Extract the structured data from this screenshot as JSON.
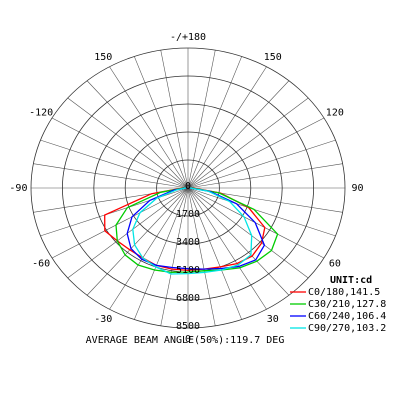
{
  "chart_data": {
    "type": "polar",
    "title": "AVERAGE BEAM ANGLE(50%):119.7 DEG",
    "unit_label": "UNIT:cd",
    "angles": [
      -90,
      -80,
      -70,
      -60,
      -50,
      -40,
      -30,
      -20,
      -10,
      0,
      10,
      20,
      30,
      40,
      50,
      60,
      70,
      80,
      90
    ],
    "series": [
      {
        "name": "C0/180,141.5",
        "color": "#ff0000",
        "values": [
          300,
          2000,
          4800,
          5200,
          5000,
          4900,
          4900,
          5000,
          5000,
          5000,
          5000,
          5100,
          5300,
          5400,
          5200,
          4800,
          3500,
          1800,
          300
        ]
      },
      {
        "name": "C30/210,127.8",
        "color": "#00cc00",
        "values": [
          200,
          1500,
          3500,
          4500,
          5000,
          5300,
          5400,
          5300,
          5200,
          5100,
          5100,
          5300,
          5600,
          5800,
          5900,
          5600,
          3800,
          1700,
          200
        ]
      },
      {
        "name": "C60/240,106.4",
        "color": "#0000ff",
        "values": [
          100,
          800,
          2200,
          3500,
          4300,
          4800,
          5000,
          5000,
          4900,
          4900,
          5000,
          5200,
          5500,
          5700,
          5400,
          4200,
          2800,
          1200,
          100
        ]
      },
      {
        "name": "C90/270,103.2",
        "color": "#00e5e5",
        "values": [
          100,
          600,
          1800,
          3000,
          3900,
          4500,
          4900,
          5100,
          5300,
          5200,
          5200,
          5300,
          5400,
          5300,
          4500,
          3500,
          2400,
          1100,
          100
        ]
      }
    ],
    "rlim": [
      0,
      8500
    ],
    "rticks": [
      0,
      1700,
      3400,
      5100,
      6800,
      8500
    ],
    "angle_ticks": [
      {
        "value": 180,
        "label": "-/+180"
      },
      {
        "value": -150,
        "label": "150"
      },
      150,
      -120,
      120,
      -90,
      90,
      -60,
      60,
      -30,
      30,
      0
    ],
    "grid": true
  }
}
